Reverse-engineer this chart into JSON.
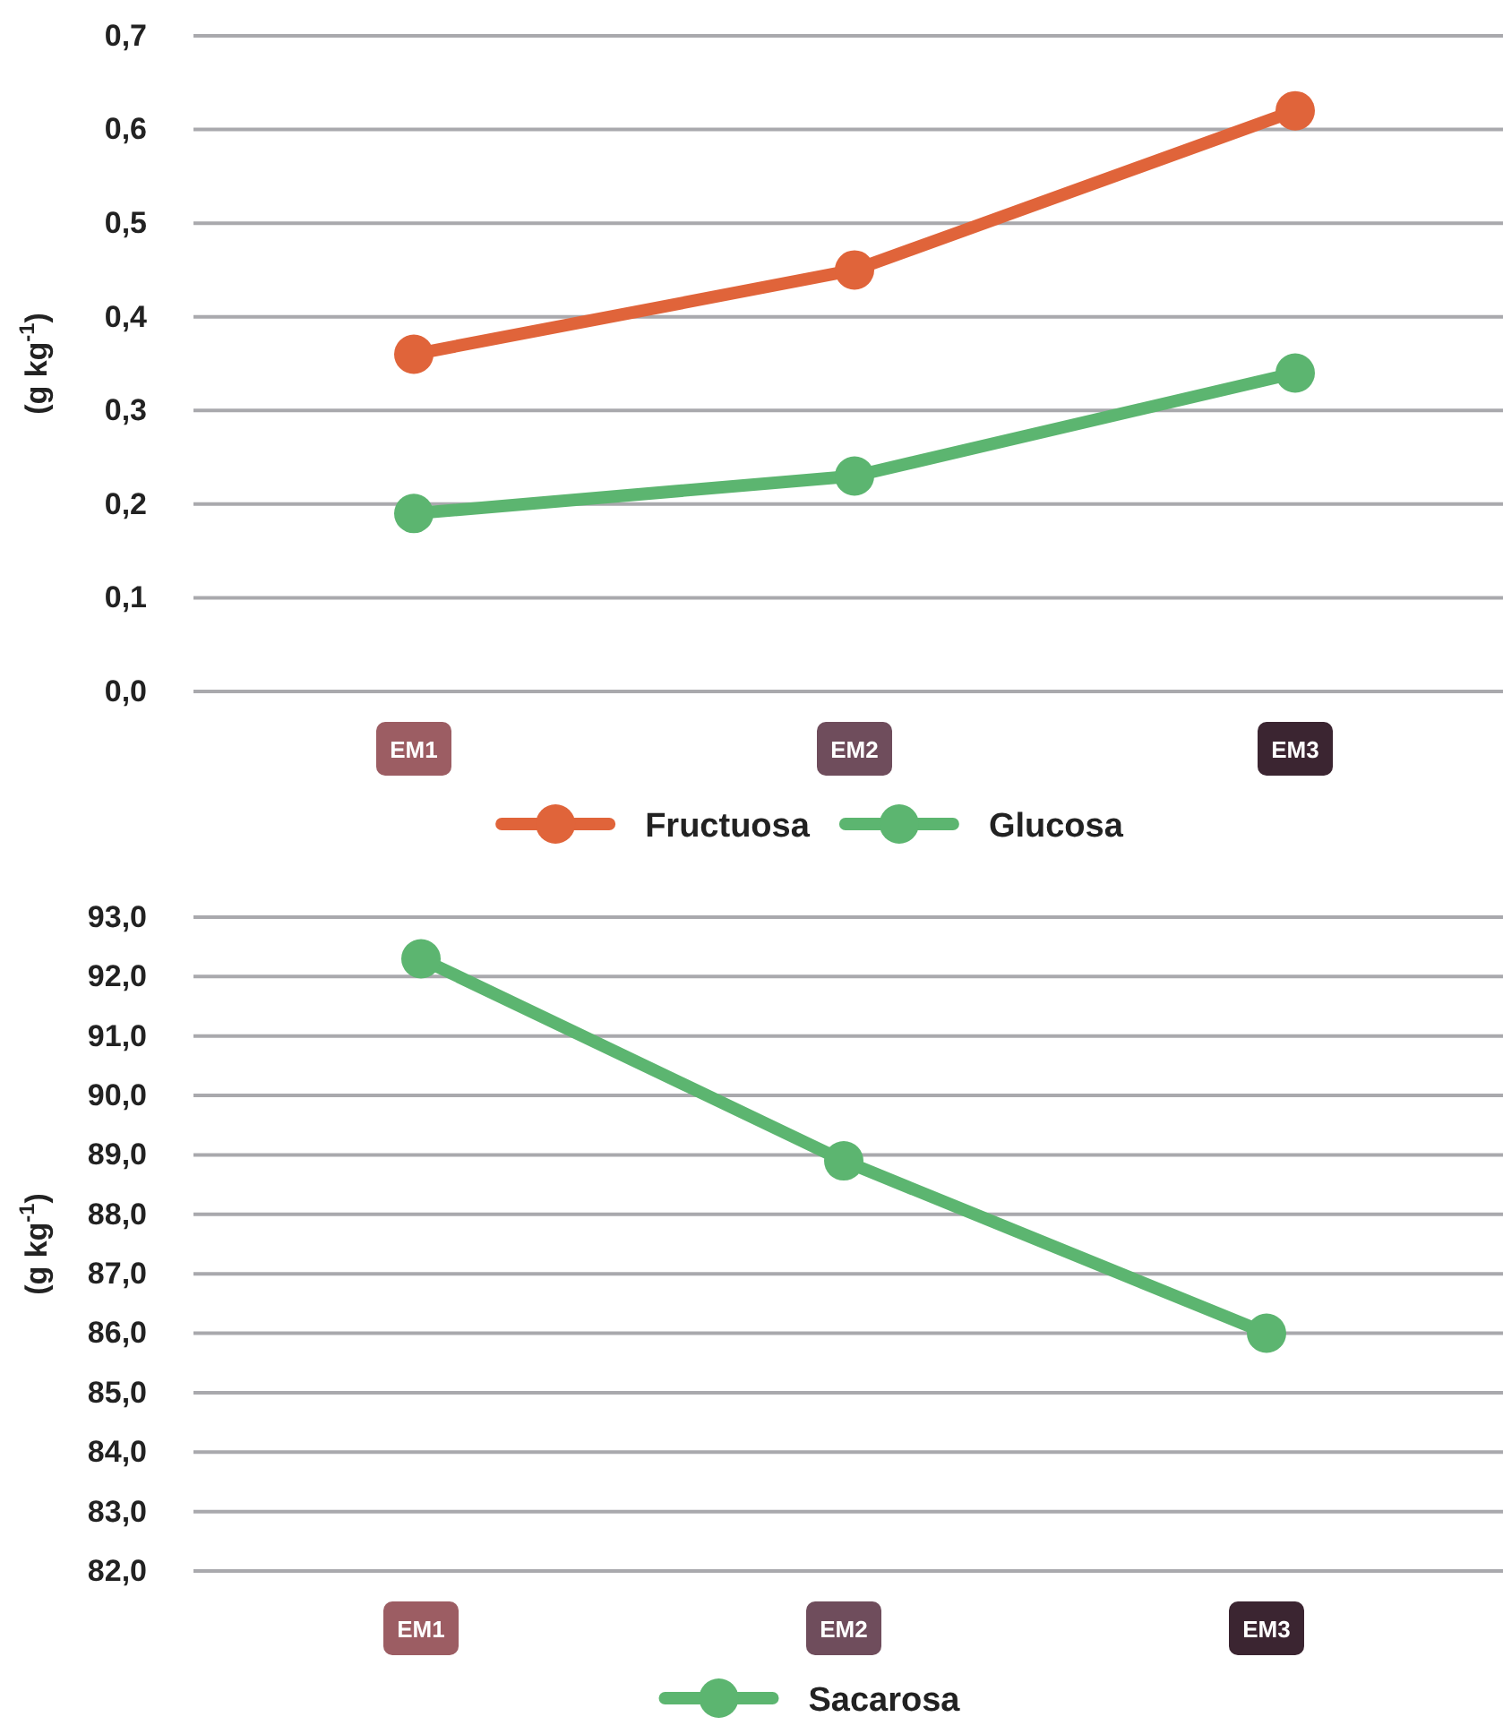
{
  "chart_data": [
    {
      "type": "line",
      "ylabel": "(g kg$^{-1}$)",
      "categories": [
        "EM1",
        "EM2",
        "EM3"
      ],
      "series": [
        {
          "name": "Fructuosa",
          "color": "#e0643a",
          "values": [
            0.36,
            0.45,
            0.62
          ]
        },
        {
          "name": "Glucosa",
          "color": "#5cb570",
          "values": [
            0.19,
            0.23,
            0.34
          ]
        }
      ],
      "ylim": [
        0,
        0.7
      ],
      "yticks": [
        {
          "value": 0,
          "label": "0,0"
        },
        {
          "value": 0.1,
          "label": "0,1"
        },
        {
          "value": 0.2,
          "label": "0,2"
        },
        {
          "value": 0.3,
          "label": "0,3"
        },
        {
          "value": 0.4,
          "label": "0,4"
        },
        {
          "value": 0.5,
          "label": "0,5"
        },
        {
          "value": 0.6,
          "label": "0,6"
        },
        {
          "value": 0.7,
          "label": "0,7"
        }
      ],
      "grid": "y",
      "legend": "bottom",
      "marker": "circle",
      "line_style": "solid"
    },
    {
      "type": "line",
      "ylabel": "(g kg$^{-1}$)",
      "categories": [
        "EM1",
        "EM2",
        "EM3"
      ],
      "series": [
        {
          "name": "Sacarosa",
          "color": "#5cb570",
          "values": [
            92.3,
            88.9,
            86.0
          ]
        }
      ],
      "ylim": [
        82,
        93
      ],
      "yticks": [
        {
          "value": 82,
          "label": "82,0"
        },
        {
          "value": 83,
          "label": "83,0"
        },
        {
          "value": 84,
          "label": "84,0"
        },
        {
          "value": 85,
          "label": "85,0"
        },
        {
          "value": 86,
          "label": "86,0"
        },
        {
          "value": 87,
          "label": "87,0"
        },
        {
          "value": 88,
          "label": "88,0"
        },
        {
          "value": 89,
          "label": "89,0"
        },
        {
          "value": 90,
          "label": "90,0"
        },
        {
          "value": 91,
          "label": "91,0"
        },
        {
          "value": 92,
          "label": "92,0"
        },
        {
          "value": 93,
          "label": "93,0"
        }
      ],
      "grid": "y",
      "legend": "bottom",
      "marker": "circle",
      "line_style": "solid"
    }
  ]
}
